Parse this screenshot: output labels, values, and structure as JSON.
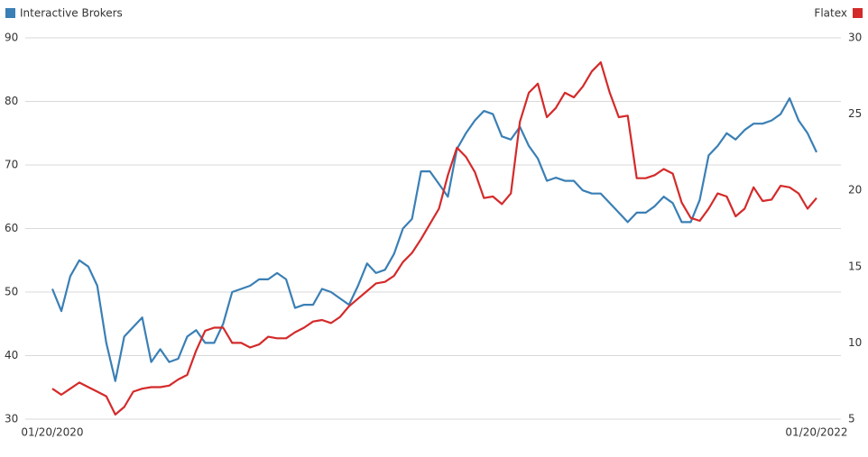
{
  "chart_data": {
    "type": "line",
    "categories": [
      "01/20/2020",
      null,
      null,
      null,
      null,
      null,
      null,
      null,
      null,
      null,
      null,
      null,
      null,
      null,
      null,
      null,
      null,
      null,
      null,
      null,
      null,
      null,
      null,
      null,
      null,
      null,
      null,
      null,
      null,
      null,
      null,
      null,
      null,
      null,
      null,
      null,
      null,
      null,
      null,
      null,
      null,
      null,
      null,
      null,
      null,
      null,
      null,
      null,
      null,
      null,
      null,
      null,
      null,
      null,
      null,
      null,
      null,
      null,
      null,
      null,
      null,
      null,
      null,
      null,
      null,
      null,
      null,
      null,
      null,
      null,
      null,
      null,
      null,
      null,
      null,
      null,
      null,
      null,
      null,
      null,
      null,
      null,
      null,
      null,
      null,
      "01/20/2022"
    ],
    "series": [
      {
        "name": "Interactive Brokers",
        "color": "#3a7fb5",
        "axis": "y",
        "values": [
          50.5,
          47,
          52.5,
          55,
          54,
          51,
          42,
          36,
          43,
          44.5,
          46,
          39,
          41,
          39,
          39.5,
          43,
          44,
          42,
          42,
          45,
          50,
          50.5,
          51,
          52,
          52,
          53,
          52,
          47.5,
          48,
          48,
          50.5,
          50,
          49,
          48,
          51,
          54.5,
          53,
          53.5,
          56,
          60,
          61.5,
          69,
          69,
          67,
          65,
          72.5,
          75,
          77,
          78.5,
          78,
          74.5,
          74,
          76,
          73,
          71,
          67.5,
          68,
          67.5,
          67.5,
          66,
          65.5,
          65.5,
          64,
          62.5,
          61,
          62.5,
          62.5,
          63.5,
          65,
          64,
          61,
          61,
          64.5,
          71.5,
          73,
          75,
          74,
          75.5,
          76.5,
          76.5,
          77,
          78,
          80.5,
          77,
          75,
          72
        ]
      },
      {
        "name": "Flatex",
        "color": "#d42a2a",
        "axis": "y2",
        "values": [
          7.0,
          6.6,
          7.0,
          7.4,
          7.1,
          6.8,
          6.5,
          5.3,
          5.8,
          6.8,
          7.0,
          7.1,
          7.1,
          7.2,
          7.6,
          7.9,
          9.5,
          10.8,
          11.0,
          11.0,
          10.0,
          10.0,
          9.7,
          9.9,
          10.4,
          10.3,
          10.3,
          10.7,
          11.0,
          11.4,
          11.5,
          11.3,
          11.7,
          12.4,
          12.9,
          13.4,
          13.9,
          14.0,
          14.4,
          15.3,
          15.9,
          16.8,
          17.8,
          18.8,
          21.0,
          22.8,
          22.2,
          21.2,
          19.5,
          19.6,
          19.1,
          19.8,
          24.5,
          26.4,
          27,
          24.8,
          25.4,
          26.4,
          26.1,
          26.8,
          27.8,
          28.4,
          26.4,
          24.8,
          24.9,
          20.8,
          20.8,
          21.0,
          21.4,
          21.1,
          19.2,
          18.2,
          18.0,
          18.8,
          19.8,
          19.6,
          18.3,
          18.8,
          20.2,
          19.3,
          19.4,
          20.3,
          20.2,
          19.8,
          18.8,
          19.5
        ]
      }
    ],
    "ylim": [
      30,
      90
    ],
    "yticks": [
      30,
      40,
      50,
      60,
      70,
      80,
      90
    ],
    "y2lim": [
      5,
      30
    ],
    "y2ticks": [
      5,
      10,
      15,
      20,
      25,
      30
    ],
    "grid": true
  }
}
